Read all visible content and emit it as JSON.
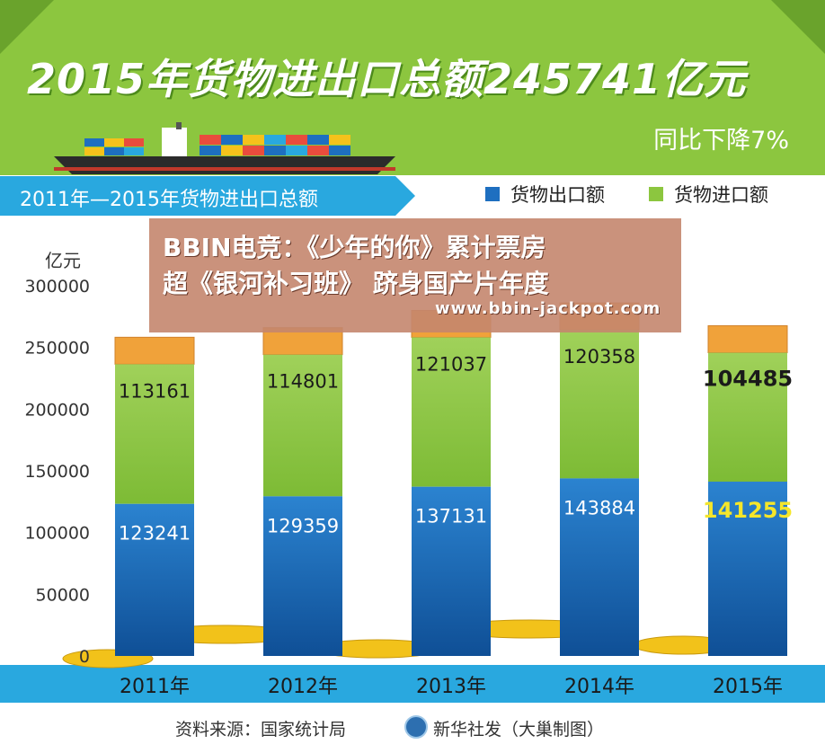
{
  "header": {
    "title": "2015年货物进出口总额245741亿元",
    "subtitle": "同比下降7%"
  },
  "section": {
    "title": "2011年—2015年货物进出口总额"
  },
  "colors": {
    "export": "#1e6fc0",
    "import": "#8cc63f",
    "accent": "#29a8df",
    "highlight": "#f5e62a"
  },
  "chart_data": {
    "type": "bar",
    "stacked": true,
    "categories": [
      "2011年",
      "2012年",
      "2013年",
      "2014年",
      "2015年"
    ],
    "series": [
      {
        "name": "货物出口额",
        "values": [
          123241,
          129359,
          137131,
          143884,
          141255
        ]
      },
      {
        "name": "货物进口额",
        "values": [
          113161,
          114801,
          121037,
          120358,
          104485
        ]
      }
    ],
    "value_labels_export": [
      "123241",
      "129359",
      "137131",
      "143884",
      "141255"
    ],
    "value_labels_import": [
      "113161",
      "114801",
      "121037",
      "120358",
      "104485"
    ],
    "ylabel": "亿元",
    "ylim": [
      0,
      300000
    ],
    "yticks": [
      0,
      50000,
      100000,
      150000,
      200000,
      250000,
      300000
    ],
    "ytick_labels": [
      "0",
      "50000",
      "100000",
      "150000",
      "200000",
      "250000",
      "300000"
    ],
    "legend_position": "top-right",
    "grid": false
  },
  "footer": {
    "source": "资料来源：国家统计局",
    "credit": "新华社发（大巢制图）"
  },
  "overlay": {
    "line1": "BBIN电竞：《少年的你》累计票房",
    "line2": "超《银河补习班》 跻身国产片年度",
    "url": "www.bbin-jackpot.com"
  }
}
